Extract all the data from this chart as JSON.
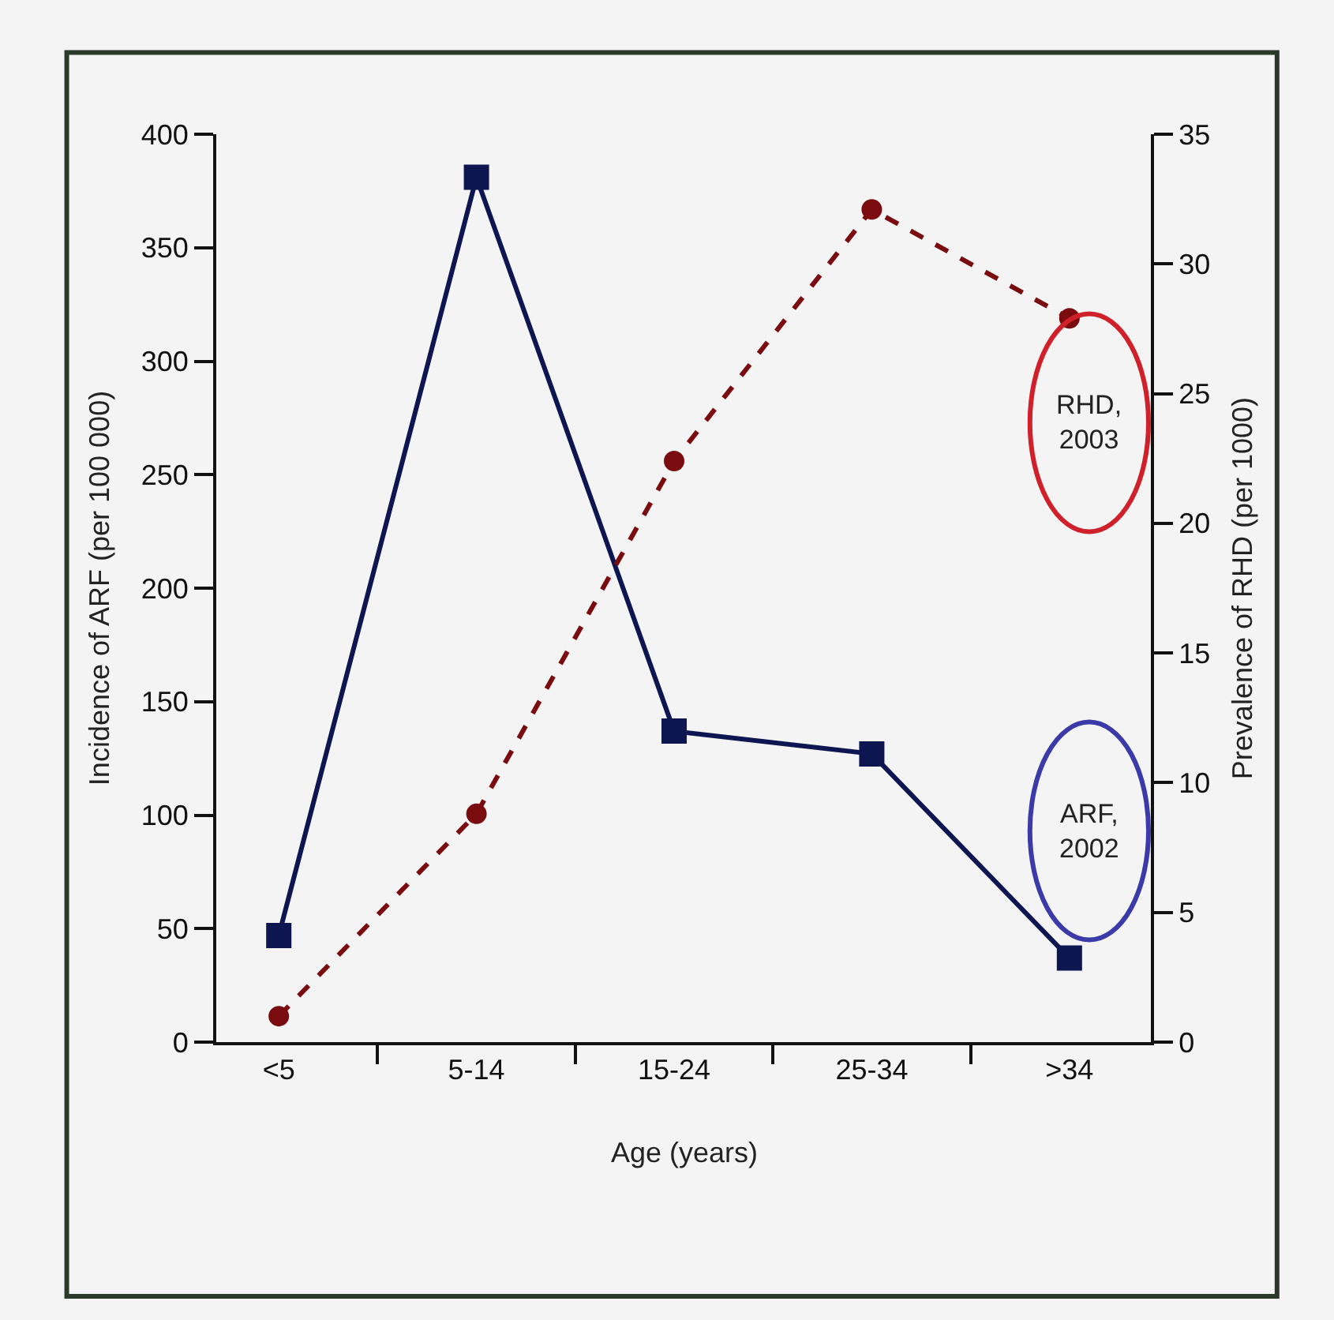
{
  "chart_data": {
    "type": "line",
    "categories": [
      "<5",
      "5-14",
      "15-24",
      "25-34",
      ">34"
    ],
    "xlabel": "Age (years)",
    "ylabel": "Incidence of ARF (per 100 000)",
    "y2label": "Prevalence of RHD (per 1000)",
    "ylim": [
      0,
      400
    ],
    "yticks": [
      0,
      50,
      100,
      150,
      200,
      250,
      300,
      350,
      400
    ],
    "y2lim": [
      0,
      35
    ],
    "y2ticks": [
      0,
      5,
      10,
      15,
      20,
      25,
      30,
      35
    ],
    "grid": false,
    "legend": false,
    "series": [
      {
        "name": "ARF,\n2002",
        "color": "#0d1650",
        "values": [
          47,
          381,
          137,
          127,
          37
        ],
        "marker": "square",
        "line_style": "solid"
      },
      {
        "name": "RHD,\n2003",
        "color": "#7a0c10",
        "values": [
          1,
          8.8,
          22.4,
          32.1,
          27.9
        ],
        "marker": "circle",
        "line_style": "dashed",
        "axis": "y2"
      }
    ]
  }
}
